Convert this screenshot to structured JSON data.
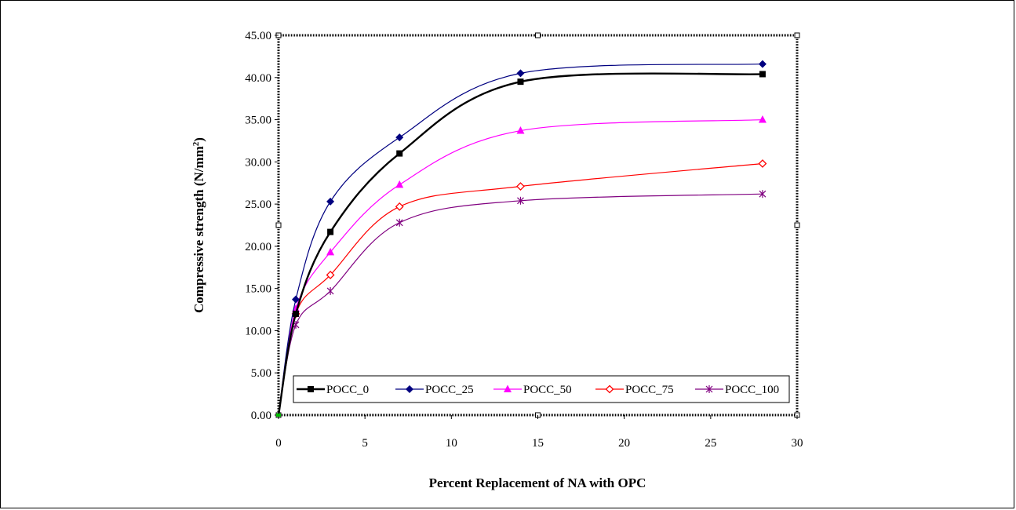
{
  "chart_data": {
    "type": "line",
    "xlabel": "Percent Replacement of NA with OPC",
    "ylabel_main": "Compressive strength (N/mm",
    "ylabel_sup": "2",
    "ylabel_close": ")",
    "xlim": [
      0,
      30
    ],
    "ylim": [
      0,
      45
    ],
    "x_ticks": [
      0,
      5,
      10,
      15,
      20,
      25,
      30
    ],
    "x_tick_labels": [
      "0",
      "5",
      "10",
      "15",
      "20",
      "25",
      "30"
    ],
    "y_ticks": [
      0,
      5,
      10,
      15,
      20,
      25,
      30,
      35,
      40,
      45
    ],
    "y_tick_labels": [
      "0.00",
      "5.00",
      "10.00",
      "15.00",
      "20.00",
      "25.00",
      "30.00",
      "35.00",
      "40.00",
      "45.00"
    ],
    "grid": false,
    "legend_position": "bottom",
    "x": [
      0,
      1,
      3,
      7,
      14,
      28
    ],
    "series": [
      {
        "name": "POCC_0",
        "color": "#000000",
        "marker": "square",
        "values": [
          0,
          12.0,
          21.7,
          31.0,
          39.5,
          40.4
        ]
      },
      {
        "name": "POCC_25",
        "color": "#000080",
        "marker": "diamond",
        "values": [
          0,
          13.7,
          25.3,
          32.9,
          40.5,
          41.6
        ]
      },
      {
        "name": "POCC_50",
        "color": "#ff00ff",
        "marker": "triangle",
        "values": [
          0,
          12.6,
          19.3,
          27.3,
          33.7,
          35.0
        ]
      },
      {
        "name": "POCC_75",
        "color": "#ff0000",
        "marker": "diamond-open",
        "values": [
          0,
          12.0,
          16.6,
          24.7,
          27.1,
          29.8
        ]
      },
      {
        "name": "POCC_100",
        "color": "#800080",
        "marker": "star",
        "values": [
          0,
          10.7,
          14.7,
          22.8,
          25.4,
          26.2
        ]
      }
    ]
  }
}
